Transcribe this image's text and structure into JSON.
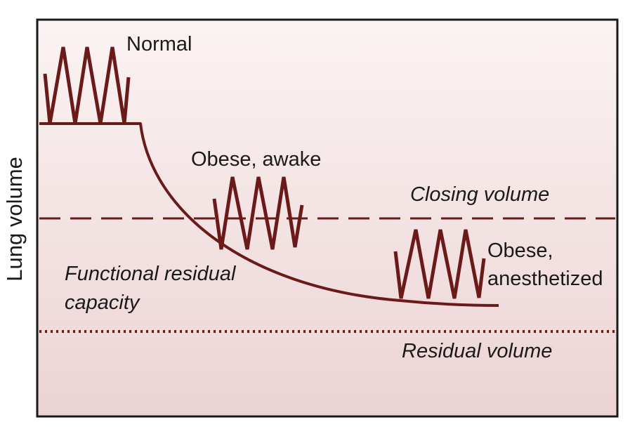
{
  "figure": {
    "colors": {
      "background_top": "#fbf3f3",
      "background_bottom": "#ecd3d3",
      "frame": "#1a1a1a",
      "curve": "#6b1a1a",
      "text": "#1a1a1a"
    },
    "y_axis_label": "Lung volume",
    "lines": {
      "closing_volume_label": "Closing volume",
      "closing_volume_style": "dashed",
      "residual_volume_label": "Residual volume",
      "residual_volume_style": "dotted"
    },
    "curve": {
      "label_line1": "Functional residual",
      "label_line2": "capacity"
    },
    "breathing_patterns": [
      {
        "label_lines": [
          "Normal"
        ]
      },
      {
        "label_lines": [
          "Obese, awake"
        ]
      },
      {
        "label_lines": [
          "Obese,",
          "anesthetized"
        ]
      }
    ]
  }
}
